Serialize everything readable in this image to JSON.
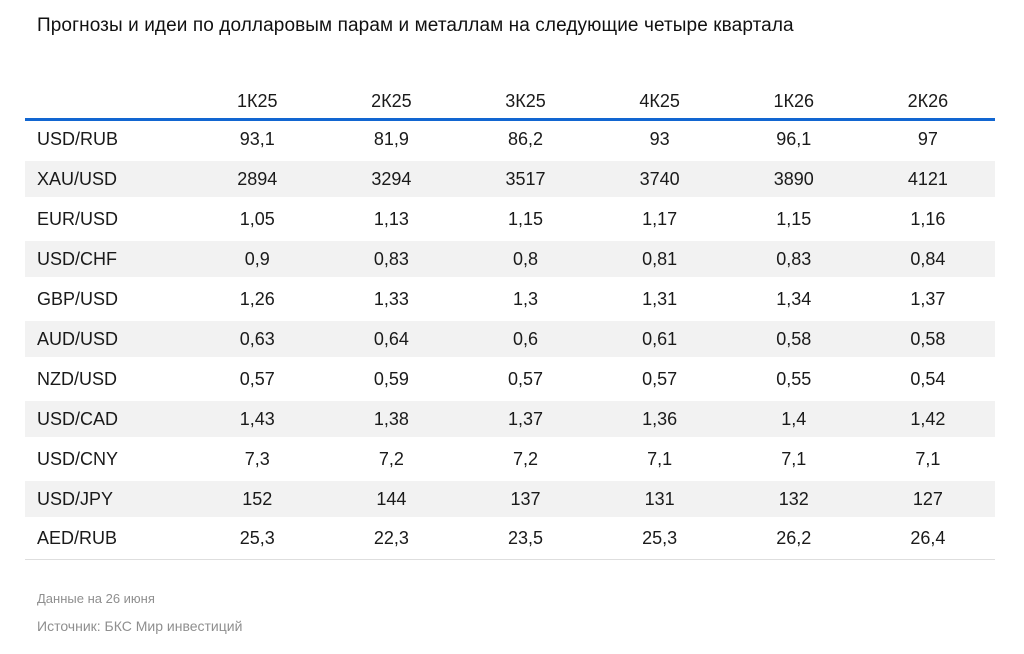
{
  "page": {
    "title": "Прогнозы и идеи по долларовым парам и металлам на следующие четыре квартала"
  },
  "chart_data": {
    "type": "table",
    "title": "Прогнозы и идеи по долларовым парам и металлам на следующие четыре квартала",
    "columns": [
      "1К25",
      "2К25",
      "3К25",
      "4К25",
      "1К26",
      "2К26"
    ],
    "rows": [
      {
        "label": "USD/RUB",
        "values": [
          "93,1",
          "81,9",
          "86,2",
          "93",
          "96,1",
          "97"
        ]
      },
      {
        "label": "XAU/USD",
        "values": [
          "2894",
          "3294",
          "3517",
          "3740",
          "3890",
          "4121"
        ]
      },
      {
        "label": "EUR/USD",
        "values": [
          "1,05",
          "1,13",
          "1,15",
          "1,17",
          "1,15",
          "1,16"
        ]
      },
      {
        "label": "USD/CHF",
        "values": [
          "0,9",
          "0,83",
          "0,8",
          "0,81",
          "0,83",
          "0,84"
        ]
      },
      {
        "label": "GBP/USD",
        "values": [
          "1,26",
          "1,33",
          "1,3",
          "1,31",
          "1,34",
          "1,37"
        ]
      },
      {
        "label": "AUD/USD",
        "values": [
          "0,63",
          "0,64",
          "0,6",
          "0,61",
          "0,58",
          "0,58"
        ]
      },
      {
        "label": "NZD/USD",
        "values": [
          "0,57",
          "0,59",
          "0,57",
          "0,57",
          "0,55",
          "0,54"
        ]
      },
      {
        "label": "USD/CAD",
        "values": [
          "1,43",
          "1,38",
          "1,37",
          "1,36",
          "1,4",
          "1,42"
        ]
      },
      {
        "label": "USD/CNY",
        "values": [
          "7,3",
          "7,2",
          "7,2",
          "7,1",
          "7,1",
          "7,1"
        ]
      },
      {
        "label": "USD/JPY",
        "values": [
          "152",
          "144",
          "137",
          "131",
          "132",
          "127"
        ]
      },
      {
        "label": "AED/RUB",
        "values": [
          "25,3",
          "22,3",
          "23,5",
          "25,3",
          "26,2",
          "26,4"
        ]
      }
    ],
    "layout": {
      "alternating_row_shading": true,
      "header_rule": "bottom"
    }
  },
  "footer": {
    "data_note": "Данные на 26 июня",
    "source": "Источник: БКС Мир инвестиций"
  },
  "colors": {
    "accent_blue": "#1266d1",
    "row_alt_background": "#f2f2f2",
    "text_primary": "#1a1a1a",
    "text_muted": "#8f8f8f",
    "table_bottom_border": "#dedede"
  }
}
